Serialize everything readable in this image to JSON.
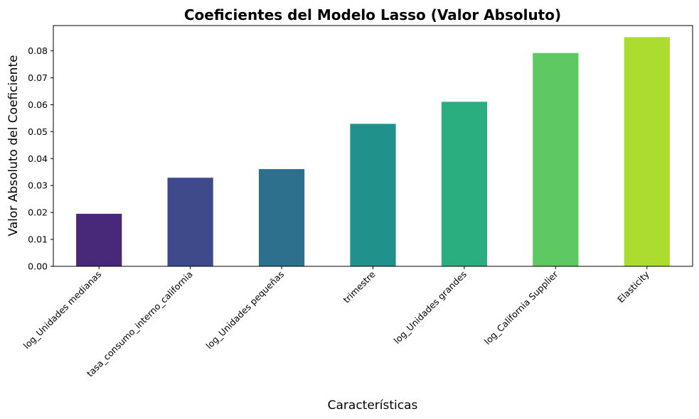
{
  "chart_data": {
    "type": "bar",
    "title": "Coeficientes del Modelo Lasso (Valor Absoluto)",
    "xlabel": "Características",
    "ylabel": "Valor Absoluto del Coeficiente",
    "categories": [
      "log_Unidades medianas",
      "tasa_consumo_interno_california",
      "log_Unidades pequeñas",
      "trimestre",
      "log_Unidades grandes",
      "log_California Supplier",
      "Elasticity"
    ],
    "values": [
      0.0195,
      0.0329,
      0.0361,
      0.0529,
      0.0611,
      0.0792,
      0.0851
    ],
    "colors": [
      "#482878",
      "#3e4a89",
      "#2d708e",
      "#21918c",
      "#2aae80",
      "#5ec962",
      "#addc30"
    ],
    "ylim": [
      0,
      0.0894
    ],
    "yticks": [
      0.0,
      0.01,
      0.02,
      0.03,
      0.04,
      0.05,
      0.06,
      0.07,
      0.08
    ],
    "ytick_labels": [
      "0.00",
      "0.01",
      "0.02",
      "0.03",
      "0.04",
      "0.05",
      "0.06",
      "0.07",
      "0.08"
    ],
    "grid": false,
    "legend": false
  }
}
